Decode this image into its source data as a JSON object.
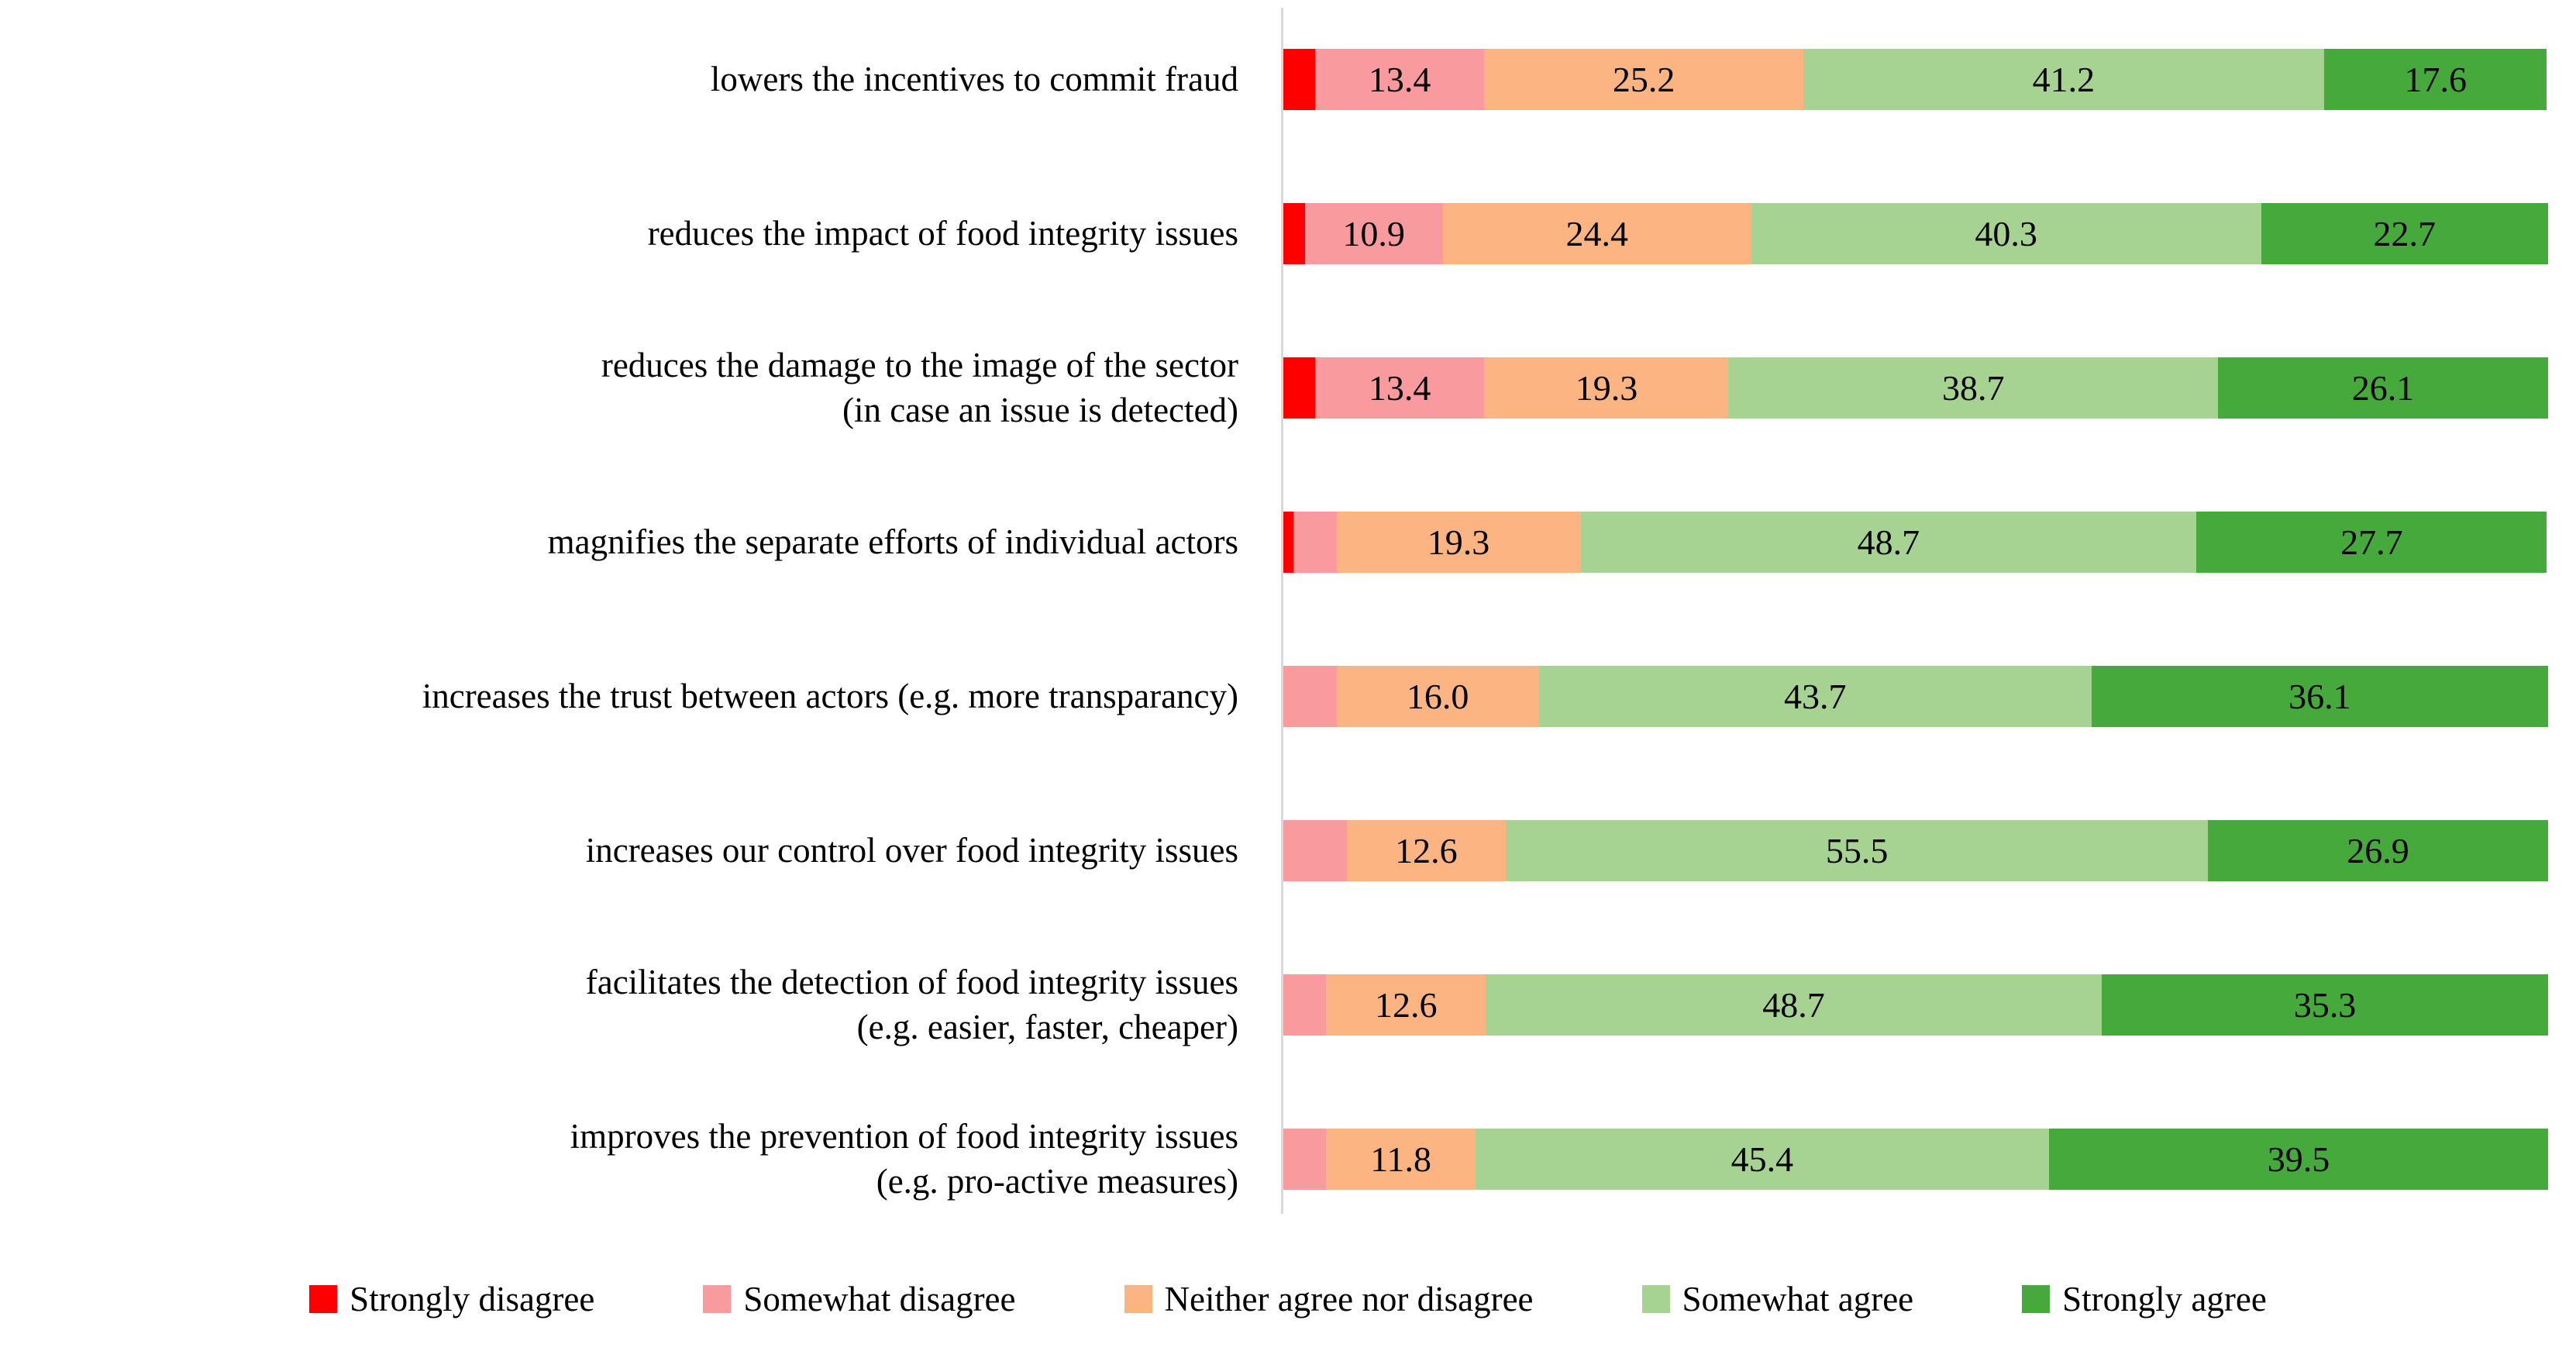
{
  "chart_data": {
    "type": "bar",
    "orientation": "horizontal",
    "stacked": true,
    "value_unit": "percent",
    "xlim": [
      0,
      100
    ],
    "grid": false,
    "legend_position": "bottom",
    "axis_line_color": "#d9d9d9",
    "categories": [
      "lowers the incentives to commit fraud",
      "reduces the impact of food integrity issues",
      "reduces the damage to the image of the sector\n(in case an issue is detected)",
      "magnifies the separate efforts of individual actors",
      "increases the trust between actors (e.g. more transparancy)",
      "increases our control over food integrity issues",
      "facilitates the detection of food integrity issues\n(e.g. easier, faster, cheaper)",
      "improves the prevention of food integrity issues\n(e.g. pro-active measures)"
    ],
    "series": [
      {
        "name": "Strongly disagree",
        "color": "#fe0000",
        "values": [
          2.5,
          1.7,
          2.5,
          0.8,
          0,
          0,
          0,
          0
        ],
        "data_labels": [
          "",
          "",
          "",
          "",
          "",
          "",
          "",
          ""
        ]
      },
      {
        "name": "Somewhat disagree",
        "color": "#f99a9e",
        "values": [
          13.4,
          10.9,
          13.4,
          3.4,
          4.2,
          5.0,
          3.4,
          3.4
        ],
        "data_labels": [
          "13.4",
          "10.9",
          "13.4",
          "",
          "",
          "",
          "",
          ""
        ]
      },
      {
        "name": "Neither agree nor disagree",
        "color": "#fcb482",
        "values": [
          25.2,
          24.4,
          19.3,
          19.3,
          16.0,
          12.6,
          12.6,
          11.8
        ],
        "data_labels": [
          "25.2",
          "24.4",
          "19.3",
          "19.3",
          "16.0",
          "12.6",
          "12.6",
          "11.8"
        ]
      },
      {
        "name": "Somewhat agree",
        "color": "#a7d392",
        "values": [
          41.2,
          40.3,
          38.7,
          48.7,
          43.7,
          55.5,
          48.7,
          45.4
        ],
        "data_labels": [
          "41.2",
          "40.3",
          "38.7",
          "48.7",
          "43.7",
          "55.5",
          "48.7",
          "45.4"
        ]
      },
      {
        "name": "Strongly agree",
        "color": "#46a93c",
        "values": [
          17.6,
          22.7,
          26.1,
          27.7,
          36.1,
          26.9,
          35.3,
          39.5
        ],
        "data_labels": [
          "17.6",
          "22.7",
          "26.1",
          "27.7",
          "36.1",
          "26.9",
          "35.3",
          "39.5"
        ]
      }
    ]
  }
}
